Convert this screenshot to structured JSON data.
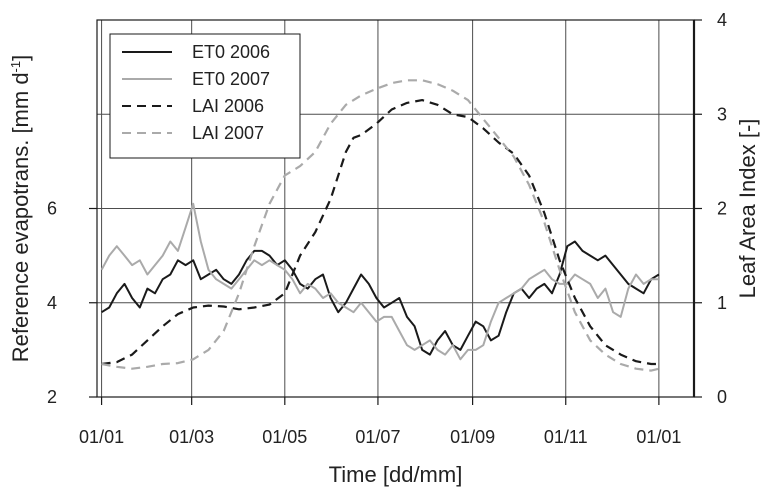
{
  "chart_data": {
    "type": "line",
    "xlabel": "Time [dd/mm]",
    "ylabel_left": "Reference evapotrans. [mm d",
    "ylabel_left_sup": "-1",
    "ylabel_left_end": "]",
    "ylabel_right": "Leaf Area Index [-]",
    "x_ticks": [
      {
        "day": 0,
        "label": "01/01"
      },
      {
        "day": 59,
        "label": "01/03"
      },
      {
        "day": 120,
        "label": "01/05"
      },
      {
        "day": 181,
        "label": "01/07"
      },
      {
        "day": 243,
        "label": "01/09"
      },
      {
        "day": 304,
        "label": "01/11"
      },
      {
        "day": 365,
        "label": "01/01"
      }
    ],
    "xlim": [
      -3,
      388
    ],
    "ylim_left": [
      2,
      10
    ],
    "y_ticks_left": [
      {
        "value": 2,
        "label": "2"
      },
      {
        "value": 4,
        "label": "4"
      },
      {
        "value": 6,
        "label": "6"
      }
    ],
    "y_grid_left": [
      2,
      4,
      6,
      8
    ],
    "ylim_right": [
      0,
      4
    ],
    "y_ticks_right": [
      {
        "value": 0,
        "label": "0"
      },
      {
        "value": 1,
        "label": "1"
      },
      {
        "value": 2,
        "label": "2"
      },
      {
        "value": 3,
        "label": "3"
      },
      {
        "value": 4,
        "label": "4"
      }
    ],
    "grid": true,
    "legend_position": "top-left",
    "series": [
      {
        "name": "ET0 2006",
        "axis": "left",
        "color": "#1a1a1a",
        "dash": "solid",
        "x": [
          0,
          5,
          10,
          15,
          20,
          25,
          30,
          35,
          40,
          45,
          50,
          55,
          60,
          65,
          70,
          75,
          80,
          85,
          90,
          95,
          100,
          105,
          110,
          115,
          120,
          125,
          130,
          135,
          140,
          145,
          150,
          155,
          160,
          165,
          170,
          175,
          180,
          185,
          190,
          195,
          200,
          205,
          210,
          215,
          220,
          225,
          230,
          235,
          240,
          245,
          250,
          255,
          260,
          265,
          270,
          275,
          280,
          285,
          290,
          295,
          300,
          305,
          310,
          315,
          320,
          325,
          330,
          335,
          340,
          345,
          350,
          355,
          360,
          365
        ],
        "y": [
          3.8,
          3.9,
          4.2,
          4.4,
          4.1,
          3.9,
          4.3,
          4.2,
          4.5,
          4.6,
          4.9,
          4.8,
          4.9,
          4.5,
          4.6,
          4.7,
          4.5,
          4.4,
          4.6,
          4.9,
          5.1,
          5.1,
          5.0,
          4.8,
          4.9,
          4.7,
          4.4,
          4.3,
          4.5,
          4.6,
          4.1,
          3.8,
          4.0,
          4.3,
          4.6,
          4.4,
          4.1,
          3.9,
          4.0,
          4.1,
          3.7,
          3.5,
          3.0,
          2.9,
          3.2,
          3.4,
          3.1,
          3.0,
          3.3,
          3.6,
          3.5,
          3.2,
          3.3,
          3.8,
          4.2,
          4.3,
          4.1,
          4.3,
          4.4,
          4.2,
          4.6,
          5.2,
          5.3,
          5.1,
          5.0,
          4.9,
          5.0,
          4.8,
          4.6,
          4.4,
          4.3,
          4.2,
          4.5,
          4.6
        ]
      },
      {
        "name": "ET0 2007",
        "axis": "left",
        "color": "#aaaaaa",
        "dash": "solid",
        "x": [
          0,
          5,
          10,
          15,
          20,
          25,
          30,
          35,
          40,
          45,
          50,
          55,
          60,
          65,
          70,
          75,
          80,
          85,
          90,
          95,
          100,
          105,
          110,
          115,
          120,
          125,
          130,
          135,
          140,
          145,
          150,
          155,
          160,
          165,
          170,
          175,
          180,
          185,
          190,
          195,
          200,
          205,
          210,
          215,
          220,
          225,
          230,
          235,
          240,
          245,
          250,
          255,
          260,
          265,
          270,
          275,
          280,
          285,
          290,
          295,
          300,
          305,
          310,
          315,
          320,
          325,
          330,
          335,
          340,
          345,
          350,
          355,
          360,
          365
        ],
        "y": [
          4.7,
          5.0,
          5.2,
          5.0,
          4.8,
          4.9,
          4.6,
          4.8,
          5.0,
          5.3,
          5.1,
          5.6,
          6.1,
          5.3,
          4.7,
          4.5,
          4.4,
          4.3,
          4.5,
          4.7,
          4.9,
          4.8,
          4.9,
          4.8,
          4.7,
          4.5,
          4.2,
          4.4,
          4.3,
          4.1,
          4.2,
          4.0,
          3.9,
          3.8,
          4.0,
          3.8,
          3.6,
          3.7,
          3.7,
          3.4,
          3.1,
          3.0,
          3.1,
          3.2,
          3.0,
          2.9,
          3.1,
          2.8,
          3.0,
          3.0,
          3.1,
          3.6,
          4.0,
          4.1,
          4.2,
          4.3,
          4.5,
          4.6,
          4.7,
          4.5,
          4.4,
          4.4,
          4.6,
          4.5,
          4.4,
          4.1,
          4.3,
          3.8,
          3.7,
          4.3,
          4.6,
          4.4,
          4.5,
          4.5
        ]
      },
      {
        "name": "LAI 2006",
        "axis": "right",
        "color": "#1a1a1a",
        "dash": "dashed",
        "x": [
          0,
          10,
          20,
          30,
          40,
          50,
          60,
          70,
          80,
          90,
          100,
          110,
          120,
          130,
          140,
          150,
          160,
          165,
          170,
          180,
          190,
          200,
          210,
          220,
          230,
          240,
          250,
          260,
          270,
          280,
          290,
          300,
          310,
          320,
          330,
          340,
          350,
          360,
          365
        ],
        "y": [
          0.35,
          0.37,
          0.45,
          0.6,
          0.75,
          0.88,
          0.95,
          0.97,
          0.96,
          0.93,
          0.95,
          0.98,
          1.1,
          1.5,
          1.75,
          2.1,
          2.6,
          2.75,
          2.78,
          2.9,
          3.05,
          3.12,
          3.15,
          3.1,
          3.0,
          2.97,
          2.85,
          2.7,
          2.58,
          2.35,
          1.95,
          1.45,
          1.05,
          0.75,
          0.55,
          0.45,
          0.38,
          0.35,
          0.35
        ]
      },
      {
        "name": "LAI 2007",
        "axis": "right",
        "color": "#aaaaaa",
        "dash": "dashed",
        "x": [
          0,
          10,
          20,
          30,
          40,
          50,
          60,
          70,
          80,
          90,
          100,
          110,
          120,
          130,
          140,
          150,
          160,
          170,
          180,
          190,
          200,
          210,
          220,
          230,
          240,
          250,
          260,
          270,
          280,
          290,
          300,
          310,
          320,
          330,
          340,
          350,
          360,
          365
        ],
        "y": [
          0.35,
          0.32,
          0.3,
          0.32,
          0.35,
          0.36,
          0.4,
          0.5,
          0.7,
          1.1,
          1.6,
          2.05,
          2.35,
          2.45,
          2.6,
          2.9,
          3.1,
          3.2,
          3.27,
          3.33,
          3.36,
          3.36,
          3.32,
          3.25,
          3.15,
          2.95,
          2.75,
          2.55,
          2.25,
          1.85,
          1.35,
          0.9,
          0.6,
          0.45,
          0.35,
          0.3,
          0.28,
          0.3
        ]
      }
    ]
  }
}
